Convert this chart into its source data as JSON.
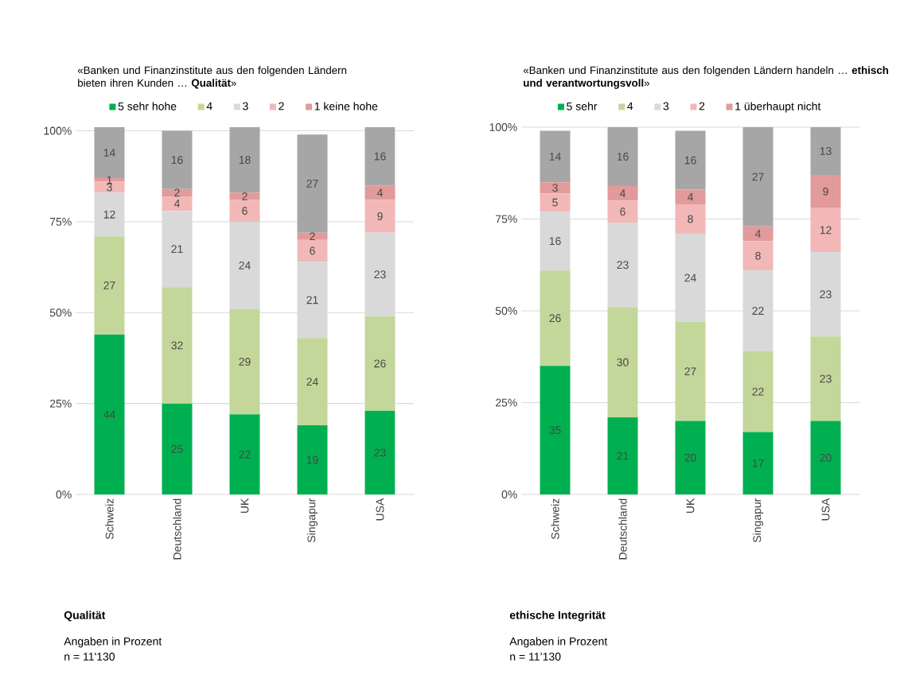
{
  "chart_data": [
    {
      "type": "bar",
      "stacked": true,
      "title": "«Banken und Finanzinstitute aus den folgenden Ländern bieten ihren Kunden … **Qualität**»",
      "categories": [
        "Schweiz",
        "Deutschland",
        "UK",
        "Singapur",
        "USA"
      ],
      "series": [
        {
          "name": "5 sehr hohe",
          "color": "#00b050",
          "values": [
            44,
            25,
            22,
            19,
            23
          ],
          "value_labels": [
            "44",
            "25",
            "22",
            "19",
            "23"
          ]
        },
        {
          "name": "4",
          "color": "#c4d79b",
          "values": [
            27,
            32,
            29,
            24,
            26
          ],
          "value_labels": [
            "27",
            "32",
            "29",
            "24",
            "26"
          ]
        },
        {
          "name": "3",
          "color": "#d9d9d9",
          "values": [
            12,
            21,
            24,
            21,
            23
          ],
          "value_labels": [
            "12",
            "21",
            "24",
            "21",
            "23"
          ]
        },
        {
          "name": "2",
          "color": "#f2b8b8",
          "values": [
            3,
            4,
            6,
            6,
            9
          ],
          "value_labels": [
            "3",
            "4",
            "6",
            "6",
            "9"
          ]
        },
        {
          "name": "1 keine hohe",
          "color": "#e29a9a",
          "values": [
            1,
            2,
            2,
            2,
            4
          ],
          "value_labels": [
            "1",
            "2",
            "2",
            "2",
            "4"
          ]
        },
        {
          "color": "#a6a6a6",
          "values": [
            14,
            16,
            18,
            27,
            16
          ],
          "value_labels": [
            "14",
            "16",
            "18",
            "27",
            "16"
          ]
        }
      ],
      "ylim": [
        0,
        101
      ],
      "yticks": [
        {
          "value": 0,
          "label": "0%"
        },
        {
          "value": 25,
          "label": "25%"
        },
        {
          "value": 50,
          "label": "50%"
        },
        {
          "value": 75,
          "label": "75%"
        },
        {
          "value": 100,
          "label": "100%"
        }
      ],
      "grid": "y",
      "legend": "top",
      "annotations": [
        "Qualität",
        "Angaben in Prozent",
        "n = 11'130"
      ]
    },
    {
      "type": "bar",
      "stacked": true,
      "title": "«Banken und Finanzinstitute aus den folgenden Ländern handeln … **ethisch und verantwortungsvoll**»",
      "categories": [
        "Schweiz",
        "Deutschland",
        "UK",
        "Singapur",
        "USA"
      ],
      "series": [
        {
          "name": "5 sehr",
          "color": "#00b050",
          "values": [
            35,
            21,
            20,
            17,
            20
          ],
          "value_labels": [
            "35",
            "21",
            "20",
            "17",
            "20"
          ]
        },
        {
          "name": "4",
          "color": "#c4d79b",
          "values": [
            26,
            30,
            27,
            22,
            23
          ],
          "value_labels": [
            "26",
            "30",
            "27",
            "22",
            "23"
          ]
        },
        {
          "name": "3",
          "color": "#d9d9d9",
          "values": [
            16,
            23,
            24,
            22,
            23
          ],
          "value_labels": [
            "16",
            "23",
            "24",
            "22",
            "23"
          ]
        },
        {
          "name": "2",
          "color": "#f2b8b8",
          "values": [
            5,
            6,
            8,
            8,
            12
          ],
          "value_labels": [
            "5",
            "6",
            "8",
            "8",
            "12"
          ]
        },
        {
          "name": "1 überhaupt nicht",
          "color": "#e29a9a",
          "values": [
            3,
            4,
            4,
            4,
            9
          ],
          "value_labels": [
            "3",
            "4",
            "4",
            "4",
            "9"
          ]
        },
        {
          "color": "#a6a6a6",
          "values": [
            14,
            16,
            16,
            27,
            13
          ],
          "value_labels": [
            "14",
            "16",
            "16",
            "27",
            "13"
          ]
        }
      ],
      "ylim": [
        0,
        100
      ],
      "yticks": [
        {
          "value": 0,
          "label": "0%"
        },
        {
          "value": 25,
          "label": "25%"
        },
        {
          "value": 50,
          "label": "50%"
        },
        {
          "value": 75,
          "label": "75%"
        },
        {
          "value": 100,
          "label": "100%"
        }
      ],
      "grid": "y",
      "legend": "top",
      "annotations": [
        "ethische Integrität",
        "Angaben in Prozent",
        "n = 11’130"
      ]
    }
  ]
}
